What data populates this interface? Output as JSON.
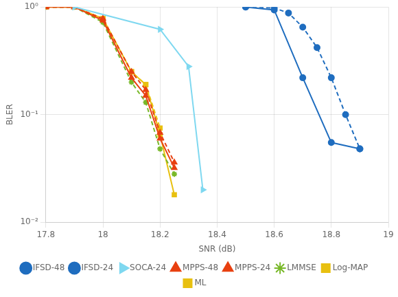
{
  "chart_data": {
    "type": "line",
    "xlabel": "SNR (dB)",
    "ylabel": "BLER",
    "log": "y",
    "grid": true,
    "legend": "bottom",
    "xlim": [
      17.8,
      19.0
    ],
    "xticks": [
      17.8,
      18,
      18.2,
      18.4,
      18.6,
      18.8,
      19
    ],
    "ylim": [
      0.01,
      1
    ],
    "yticks": [
      {
        "value": 0.01,
        "label": "10⁻²"
      },
      {
        "value": 0.1,
        "label": "10⁻¹"
      },
      {
        "value": 1,
        "label": "10⁰"
      }
    ],
    "series": [
      {
        "name": "IFSD-48",
        "color": "#1f6dbf",
        "line_style": "solid",
        "marker": "circle",
        "x": [
          18.5,
          18.6,
          18.7,
          18.8,
          18.9
        ],
        "values": [
          1.0,
          0.94,
          0.22,
          0.055,
          0.048
        ]
      },
      {
        "name": "IFSD-24",
        "color": "#1f6dbf",
        "line_style": "dashed",
        "marker": "circle",
        "x": [
          18.5,
          18.6,
          18.65,
          18.7,
          18.75,
          18.8,
          18.85,
          18.9
        ],
        "values": [
          1.0,
          0.98,
          0.88,
          0.65,
          0.42,
          0.22,
          0.1,
          0.048
        ]
      },
      {
        "name": "SOCA-24",
        "color": "#7fd8f0",
        "line_style": "solid",
        "marker": "triangle-right",
        "x": [
          17.9,
          18.2,
          18.3,
          18.35
        ],
        "values": [
          1.0,
          0.62,
          0.28,
          0.02
        ]
      },
      {
        "name": "MPPS-48",
        "color": "#e84010",
        "line_style": "solid",
        "marker": "triangle",
        "x": [
          17.8,
          17.9,
          18.0,
          18.1,
          18.15,
          18.2,
          18.25
        ],
        "values": [
          1.0,
          1.0,
          0.75,
          0.22,
          0.15,
          0.06,
          0.032
        ]
      },
      {
        "name": "MPPS-24",
        "color": "#e84010",
        "line_style": "dashed",
        "marker": "triangle",
        "x": [
          17.8,
          17.9,
          18.0,
          18.1,
          18.15,
          18.2,
          18.25
        ],
        "values": [
          1.0,
          1.0,
          0.78,
          0.25,
          0.17,
          0.068,
          0.036
        ]
      },
      {
        "name": "LMMSE",
        "color": "#78b828",
        "line_style": "dashed",
        "marker": "star",
        "x": [
          17.8,
          17.9,
          18.0,
          18.1,
          18.15,
          18.2,
          18.25
        ],
        "values": [
          1.0,
          1.0,
          0.72,
          0.2,
          0.13,
          0.048,
          0.028
        ]
      },
      {
        "name": "Log-MAP",
        "color": "#e8c010",
        "line_style": "dashed",
        "marker": "square",
        "x": [
          17.8,
          17.9,
          18.0,
          18.1,
          18.15,
          18.2
        ],
        "values": [
          1.0,
          1.0,
          0.78,
          0.25,
          0.19,
          0.075
        ]
      },
      {
        "name": "ML",
        "color": "#e8c010",
        "line_style": "solid",
        "marker": "square",
        "x": [
          17.8,
          17.9,
          18.0,
          18.1,
          18.15,
          18.2,
          18.25
        ],
        "values": [
          1.0,
          1.0,
          0.78,
          0.25,
          0.19,
          0.065,
          0.018
        ]
      }
    ]
  }
}
